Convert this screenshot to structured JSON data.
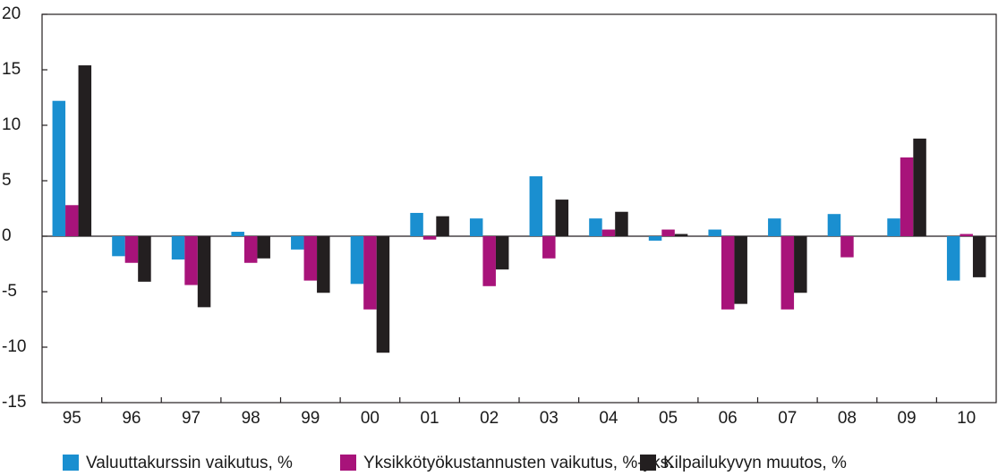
{
  "chart_data": {
    "type": "bar",
    "categories": [
      "95",
      "96",
      "97",
      "98",
      "99",
      "00",
      "01",
      "02",
      "03",
      "04",
      "05",
      "06",
      "07",
      "08",
      "09",
      "10"
    ],
    "series": [
      {
        "name": "Valuuttakurssin vaikutus, %",
        "color": "#1a8fd0",
        "values": [
          12.2,
          -1.8,
          -2.1,
          0.4,
          -1.2,
          -4.3,
          2.1,
          1.6,
          5.4,
          1.6,
          -0.4,
          0.6,
          1.6,
          2.0,
          1.6,
          -4.0
        ]
      },
      {
        "name": "Yksikkötyökustannusten vaikutus, %-yks.",
        "color": "#a8137a",
        "values": [
          2.8,
          -2.4,
          -4.4,
          -2.4,
          -4.0,
          -6.6,
          -0.3,
          -4.5,
          -2.0,
          0.6,
          0.6,
          -6.6,
          -6.6,
          -1.9,
          7.1,
          0.2
        ]
      },
      {
        "name": "Kilpailukyvyn muutos, %",
        "color": "#231f20",
        "values": [
          15.4,
          -4.1,
          -6.4,
          -2.0,
          -5.1,
          -10.5,
          1.8,
          -3.0,
          3.3,
          2.2,
          0.2,
          -6.1,
          -5.1,
          0.0,
          8.8,
          -3.7
        ]
      }
    ],
    "ylim": [
      -15,
      20
    ],
    "yticks": [
      -15,
      -10,
      -5,
      0,
      5,
      10,
      15,
      20
    ],
    "grid": false,
    "legend": "bottom"
  }
}
